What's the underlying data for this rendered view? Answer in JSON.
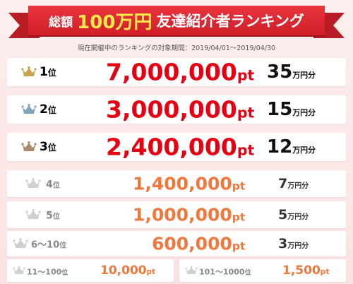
{
  "banner": {
    "prefix": "総額",
    "amount": "100万円",
    "title": "友達紹介者ランキング"
  },
  "period": "現在開催中のランキングの対象期間：2019/04/01〜2019/04/30",
  "rows": [
    {
      "rank_num": "1",
      "rank_suffix": "位",
      "points": "7,000,000",
      "points_unit": "pt",
      "prize_num": "35",
      "prize_unit": "万円分",
      "crown": "gold-crown-icon"
    },
    {
      "rank_num": "2",
      "rank_suffix": "位",
      "points": "3,000,000",
      "points_unit": "pt",
      "prize_num": "15",
      "prize_unit": "万円分",
      "crown": "silver-crown-icon"
    },
    {
      "rank_num": "3",
      "rank_suffix": "位",
      "points": "2,400,000",
      "points_unit": "pt",
      "prize_num": "12",
      "prize_unit": "万円分",
      "crown": "bronze-crown-icon"
    },
    {
      "rank_num": "4",
      "rank_suffix": "位",
      "points": "1,400,000",
      "points_unit": "pt",
      "prize_num": "7",
      "prize_unit": "万円分",
      "crown": "gray-crown-icon"
    },
    {
      "rank_num": "5",
      "rank_suffix": "位",
      "points": "1,000,000",
      "points_unit": "pt",
      "prize_num": "5",
      "prize_unit": "万円分",
      "crown": "gray-crown-icon"
    },
    {
      "rank_num": "6〜10",
      "rank_suffix": "位",
      "points": "600,000",
      "points_unit": "pt",
      "prize_num": "3",
      "prize_unit": "万円分",
      "crown": "gray-crown-icon"
    }
  ],
  "bottom": [
    {
      "rank": "11〜100",
      "rank_suffix": "位",
      "points": "10,000",
      "points_unit": "pt",
      "crown": "gray-crown-icon"
    },
    {
      "rank": "101〜1000",
      "rank_suffix": "位",
      "points": "1,500",
      "points_unit": "pt",
      "crown": "gray-crown-icon"
    }
  ],
  "colors": {
    "banner_red": "#d8232c",
    "top_points": "#e60012",
    "lower_points": "#f0783c",
    "gold": "#c9a24c",
    "silver": "#7fa5b8",
    "bronze": "#a88a6a",
    "gray": "#cfcfcf"
  }
}
